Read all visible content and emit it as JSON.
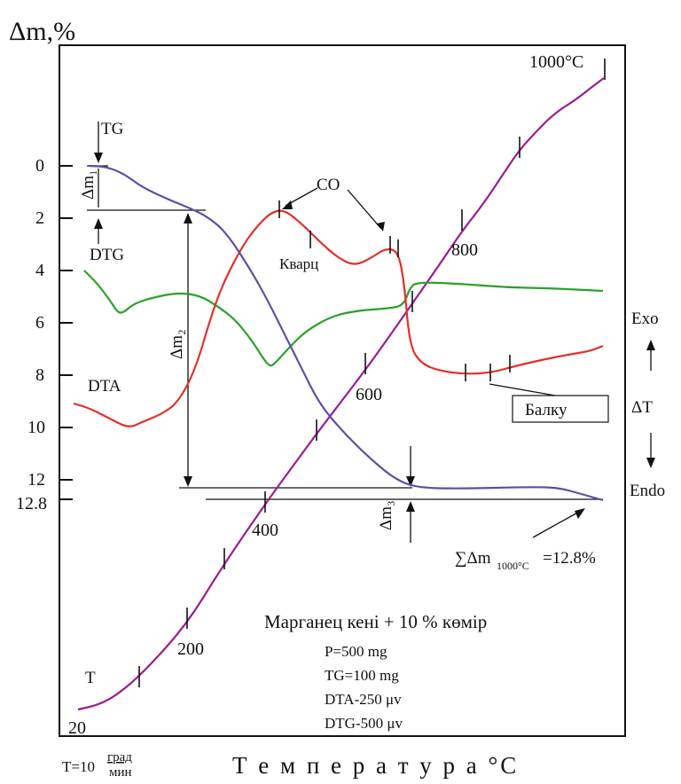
{
  "chart_data": {
    "type": "line",
    "title": "",
    "ylabel": "Δm,%",
    "xlabel": "Т е м п е р а т у р а  °С",
    "heating_rate": {
      "prefix": "T=10",
      "numerator": "град",
      "denominator": "мин"
    },
    "ylim": [
      0,
      12.8
    ],
    "y_ticks": [
      "0",
      "2",
      "4",
      "6",
      "8",
      "10",
      "12",
      "12.8"
    ],
    "temperature_labels": [
      "20",
      "200",
      "400",
      "600",
      "800",
      "1000°C"
    ],
    "series": [
      {
        "name": "TG",
        "color": "#5b4fa8",
        "x": [
          20,
          80,
          150,
          200,
          260,
          300,
          340,
          400,
          450,
          500,
          560,
          620,
          680,
          760,
          850,
          950,
          1000
        ],
        "y": [
          0,
          0.1,
          1.0,
          1.6,
          2.0,
          3.0,
          4.5,
          6.5,
          8.8,
          10.5,
          11.7,
          12.3,
          12.4,
          12.4,
          12.4,
          12.4,
          12.8
        ]
      },
      {
        "name": "DTG",
        "color": "#2ca02c"
      },
      {
        "name": "DTA",
        "color": "#e2302a"
      },
      {
        "name": "T",
        "color": "#9b1d8f"
      }
    ],
    "labels": {
      "tg": "TG",
      "dtg": "DTG",
      "dta": "DTA",
      "t": "T",
      "dm1": "Δm₁",
      "dm2": "Δm₂",
      "dm3": "Δm₃",
      "co": "CO",
      "kvarts": "Кварц",
      "balku": "Балку",
      "sum_main": "∑Δm",
      "sum_sub": "1000°C",
      "sum_val": "=12.8%",
      "exo": "Exo",
      "endo": "Endo",
      "delta_t": "ΔT"
    },
    "sample_info": [
      "Марганец кені + 10 % көмір",
      "P=500 mg",
      "TG=100 mg",
      "DTA-250 μv",
      "DTG-500 μv"
    ]
  }
}
